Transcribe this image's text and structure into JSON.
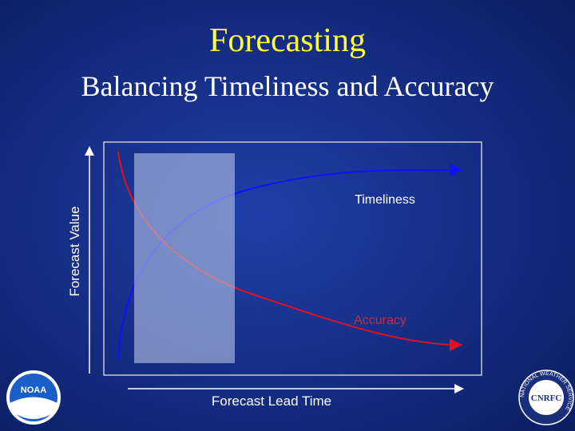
{
  "header": {
    "title": "Forecasting",
    "subtitle": "Balancing Timeliness and Accuracy"
  },
  "diagram": {
    "y_axis_label": "Forecast Value",
    "x_axis_label": "Forecast Lead Time",
    "curves": [
      {
        "label": "Timeliness"
      },
      {
        "label": "Accuracy"
      }
    ]
  },
  "logos": {
    "left": "NOAA",
    "right": "CNRFC",
    "right_ring": "NATIONAL WEATHER SERVICE"
  }
}
